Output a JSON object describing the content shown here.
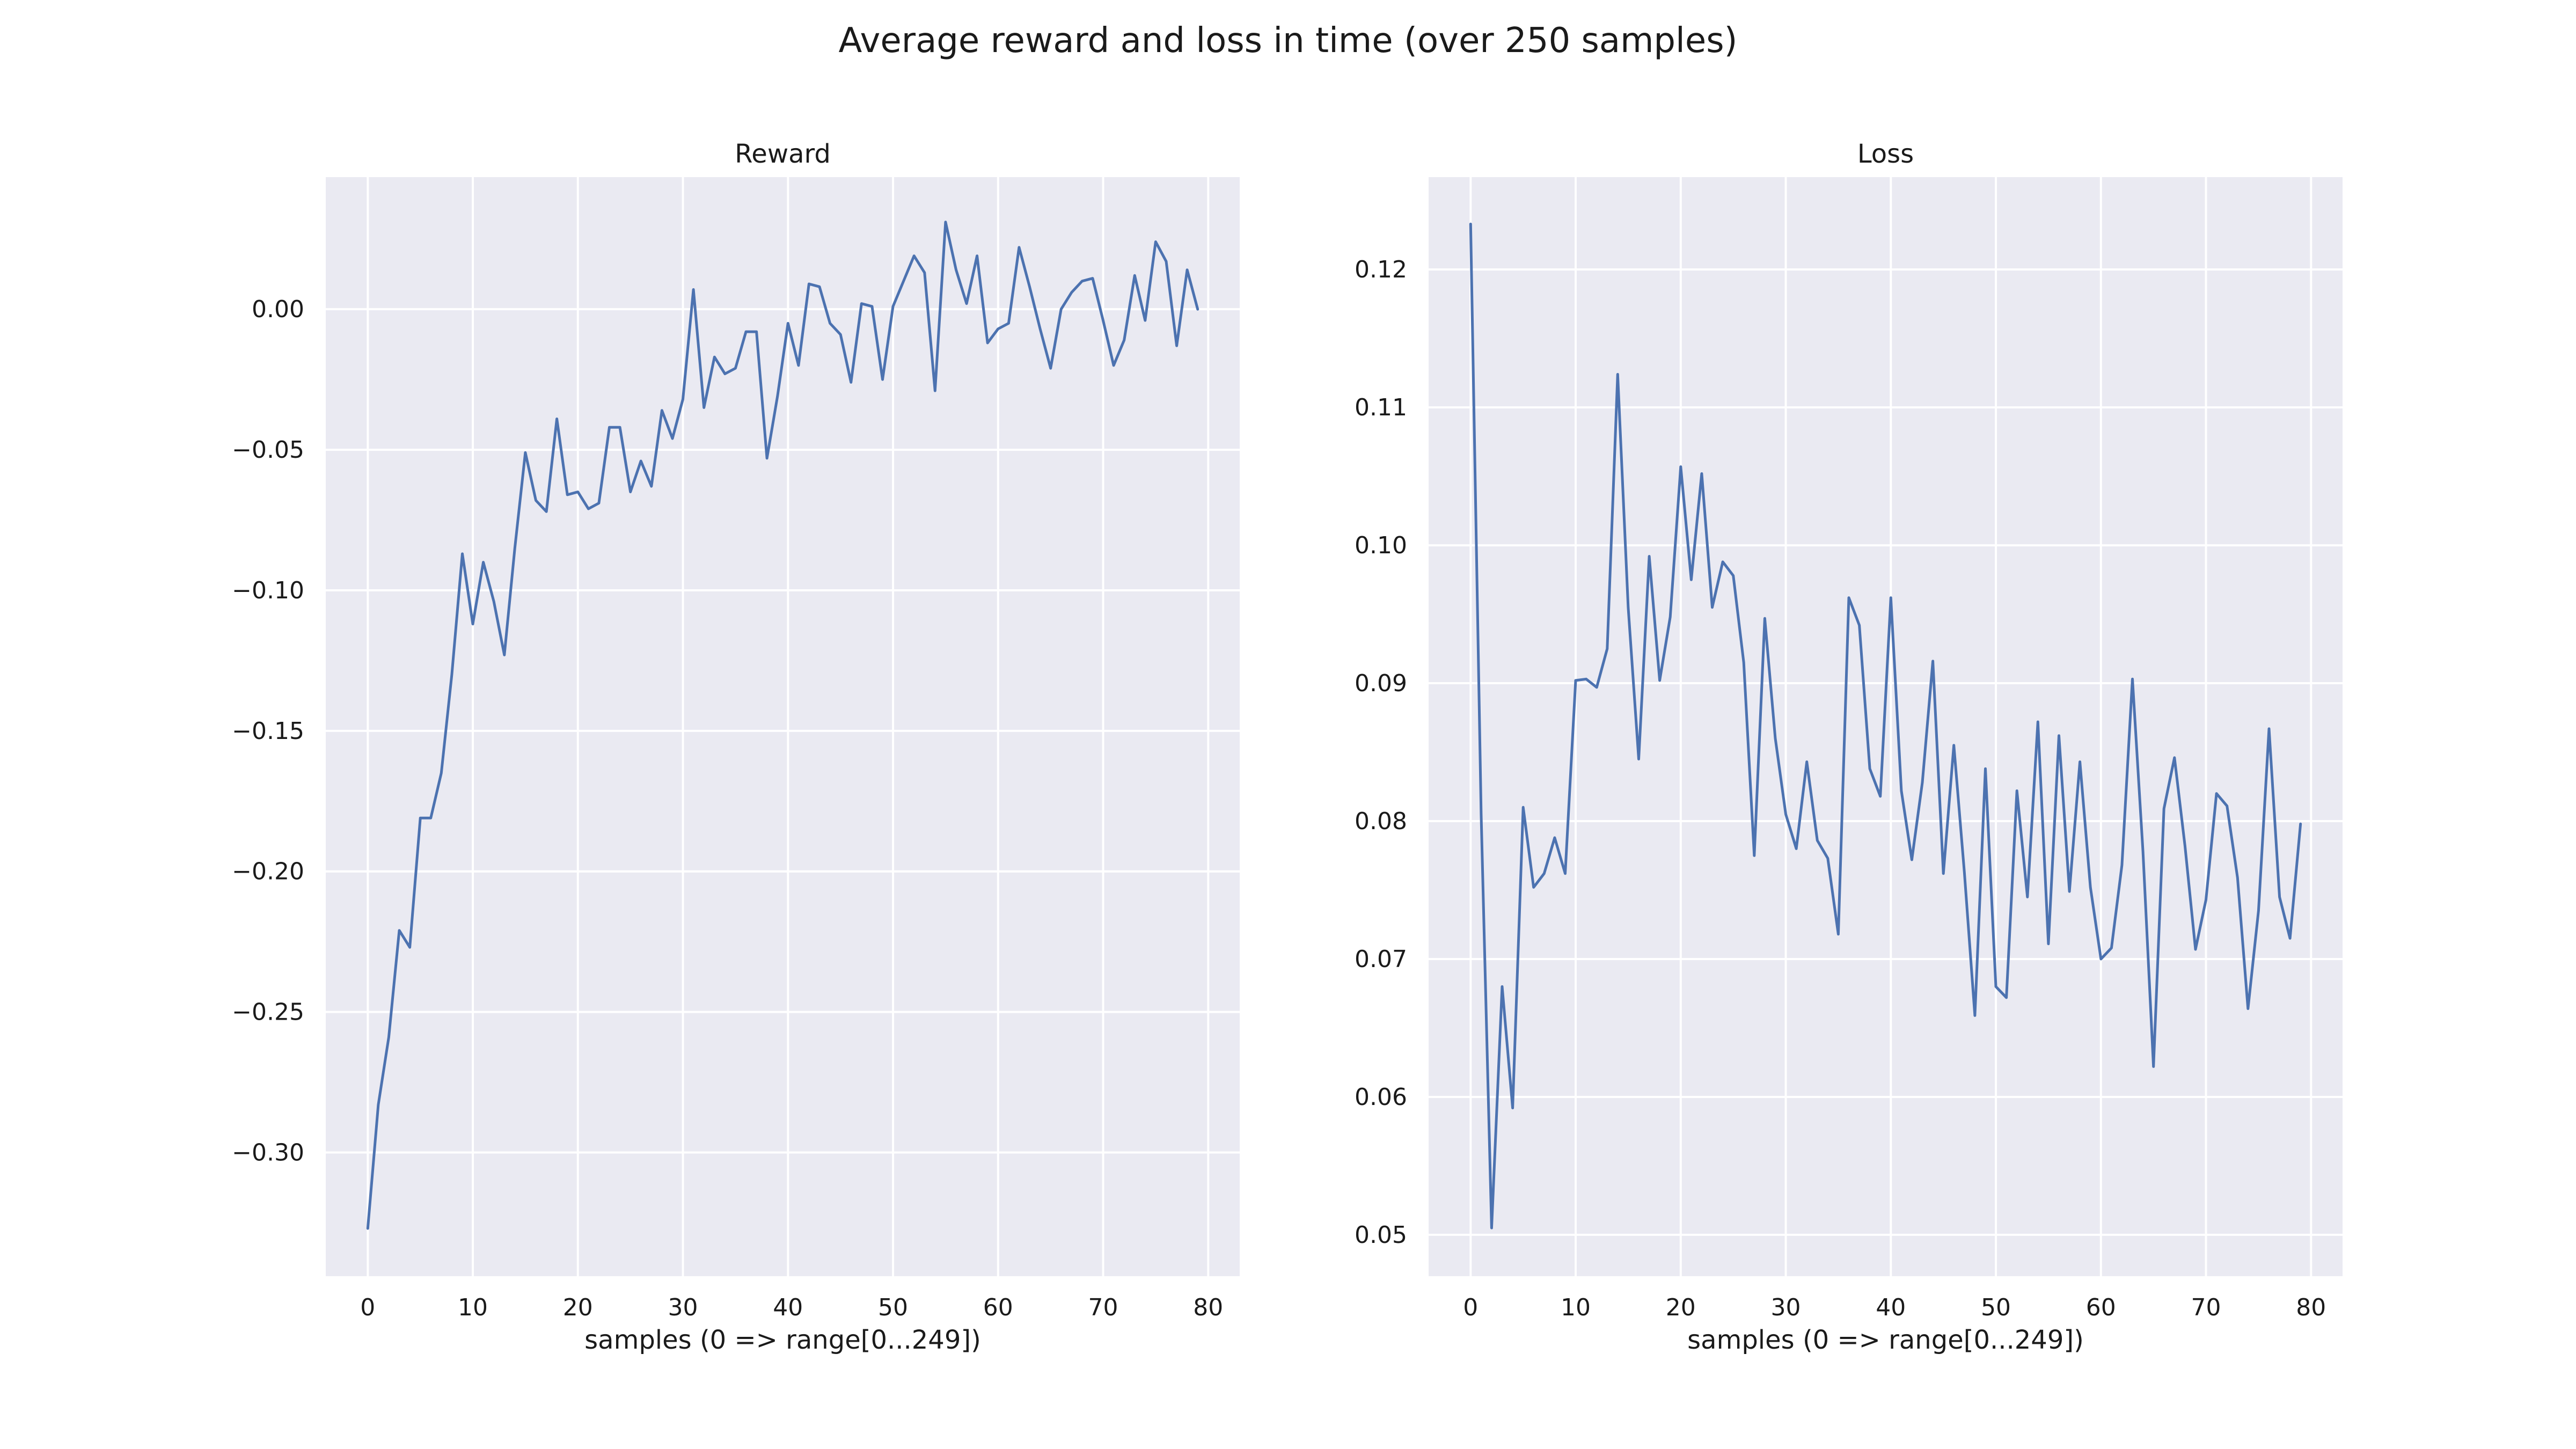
{
  "figure": {
    "title": "Average reward and loss in time (over 250 samples)"
  },
  "style": {
    "line_color": "#4c72b0",
    "panel_background": "#eaeaf2",
    "grid_color": "#ffffff",
    "text_color": "#1a1a1a"
  },
  "chart_data": [
    {
      "type": "line",
      "title": "Reward",
      "xlabel": "samples (0 => range[0...249])",
      "ylabel": "",
      "xlim": [
        -4,
        83
      ],
      "ylim": [
        -0.344,
        0.047
      ],
      "xticks": [
        0,
        10,
        20,
        30,
        40,
        50,
        60,
        70,
        80
      ],
      "xtick_labels": [
        "0",
        "10",
        "20",
        "30",
        "40",
        "50",
        "60",
        "70",
        "80"
      ],
      "yticks": [
        -0.3,
        -0.25,
        -0.2,
        -0.15,
        -0.1,
        -0.05,
        0.0
      ],
      "ytick_labels": [
        "−0.30",
        "−0.25",
        "−0.20",
        "−0.15",
        "−0.10",
        "−0.05",
        "0.00"
      ],
      "grid": true,
      "series": [
        {
          "x": [
            0,
            1,
            2,
            3,
            4,
            5,
            6,
            7,
            8,
            9,
            10,
            11,
            12,
            13,
            14,
            15,
            16,
            17,
            18,
            19,
            20,
            21,
            22,
            23,
            24,
            25,
            26,
            27,
            28,
            29,
            30,
            31,
            32,
            33,
            34,
            35,
            36,
            37,
            38,
            39,
            40,
            41,
            42,
            43,
            44,
            45,
            46,
            47,
            48,
            49,
            50,
            51,
            52,
            53,
            54,
            55,
            56,
            57,
            58,
            59,
            60,
            61,
            62,
            63,
            64,
            65,
            66,
            67,
            68,
            69,
            70,
            71,
            72,
            73,
            74,
            75,
            76,
            77,
            78,
            79
          ],
          "values": [
            -0.327,
            -0.283,
            -0.259,
            -0.221,
            -0.227,
            -0.181,
            -0.181,
            -0.165,
            -0.13,
            -0.087,
            -0.112,
            -0.09,
            -0.104,
            -0.123,
            -0.085,
            -0.051,
            -0.068,
            -0.072,
            -0.039,
            -0.066,
            -0.065,
            -0.071,
            -0.069,
            -0.042,
            -0.042,
            -0.065,
            -0.054,
            -0.063,
            -0.036,
            -0.046,
            -0.032,
            0.007,
            -0.035,
            -0.017,
            -0.023,
            -0.021,
            -0.008,
            -0.008,
            -0.053,
            -0.031,
            -0.005,
            -0.02,
            0.009,
            0.008,
            -0.005,
            -0.009,
            -0.026,
            0.002,
            0.001,
            -0.025,
            0.001,
            0.01,
            0.019,
            0.013,
            -0.029,
            0.031,
            0.014,
            0.002,
            0.019,
            -0.012,
            -0.007,
            -0.005,
            0.022,
            0.008,
            -0.007,
            -0.021,
            0.0,
            0.006,
            0.01,
            0.011,
            -0.004,
            -0.02,
            -0.011,
            0.012,
            -0.004,
            0.024,
            0.017,
            -0.013,
            0.014,
            0.0
          ]
        }
      ]
    },
    {
      "type": "line",
      "title": "Loss",
      "xlabel": "samples (0 => range[0...249])",
      "ylabel": "",
      "xlim": [
        -4,
        83
      ],
      "ylim": [
        0.047,
        0.1267
      ],
      "xticks": [
        0,
        10,
        20,
        30,
        40,
        50,
        60,
        70,
        80
      ],
      "xtick_labels": [
        "0",
        "10",
        "20",
        "30",
        "40",
        "50",
        "60",
        "70",
        "80"
      ],
      "yticks": [
        0.05,
        0.06,
        0.07,
        0.08,
        0.09,
        0.1,
        0.11,
        0.12
      ],
      "ytick_labels": [
        "0.05",
        "0.06",
        "0.07",
        "0.08",
        "0.09",
        "0.10",
        "0.11",
        "0.12"
      ],
      "grid": true,
      "series": [
        {
          "x": [
            0,
            1,
            2,
            3,
            4,
            5,
            6,
            7,
            8,
            9,
            10,
            11,
            12,
            13,
            14,
            15,
            16,
            17,
            18,
            19,
            20,
            21,
            22,
            23,
            24,
            25,
            26,
            27,
            28,
            29,
            30,
            31,
            32,
            33,
            34,
            35,
            36,
            37,
            38,
            39,
            40,
            41,
            42,
            43,
            44,
            45,
            46,
            47,
            48,
            49,
            50,
            51,
            52,
            53,
            54,
            55,
            56,
            57,
            58,
            59,
            60,
            61,
            62,
            63,
            64,
            65,
            66,
            67,
            68,
            69,
            70,
            71,
            72,
            73,
            74,
            75,
            76,
            77,
            78,
            79
          ],
          "values": [
            0.1233,
            0.0805,
            0.0505,
            0.068,
            0.0592,
            0.081,
            0.0752,
            0.0762,
            0.0788,
            0.0762,
            0.0902,
            0.0903,
            0.0897,
            0.0925,
            0.1124,
            0.0955,
            0.0845,
            0.0992,
            0.0902,
            0.0948,
            0.1057,
            0.0975,
            0.1052,
            0.0955,
            0.0988,
            0.0978,
            0.0915,
            0.0775,
            0.0947,
            0.086,
            0.0805,
            0.078,
            0.0843,
            0.0786,
            0.0773,
            0.0718,
            0.0962,
            0.0942,
            0.0838,
            0.0818,
            0.0962,
            0.0822,
            0.0772,
            0.0828,
            0.0916,
            0.0762,
            0.0855,
            0.0763,
            0.0659,
            0.0838,
            0.068,
            0.0672,
            0.0822,
            0.0745,
            0.0872,
            0.0711,
            0.0862,
            0.0749,
            0.0843,
            0.0752,
            0.07,
            0.0708,
            0.0768,
            0.0903,
            0.0778,
            0.0622,
            0.0809,
            0.0846,
            0.0782,
            0.0707,
            0.0743,
            0.082,
            0.0811,
            0.0759,
            0.0664,
            0.0735,
            0.0867,
            0.0745,
            0.0715,
            0.0798
          ]
        }
      ]
    }
  ]
}
